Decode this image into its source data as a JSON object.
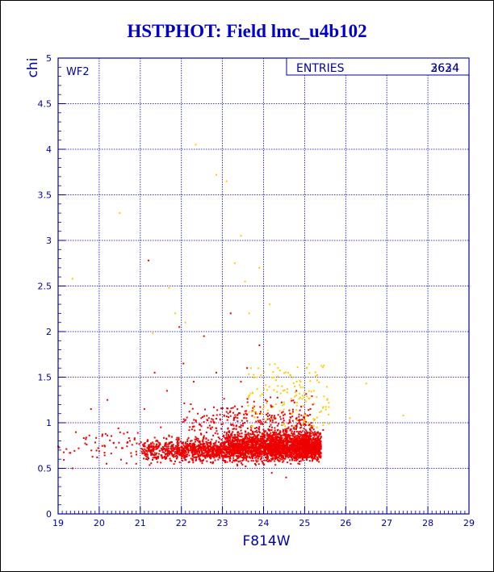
{
  "chart_data": {
    "type": "scatter",
    "title": "HSTPHOT: Field lmc_u4b102",
    "xlabel": "F814W",
    "ylabel": "chi",
    "xlim": [
      19,
      29
    ],
    "ylim": [
      0,
      5
    ],
    "grid": true,
    "panel_label": "WF2",
    "stats_box": {
      "label": "ENTRIES",
      "values": [
        "2624",
        "3634"
      ]
    },
    "xticks": [
      "19",
      "20",
      "21",
      "22",
      "23",
      "24",
      "25",
      "26",
      "27",
      "28",
      "29"
    ],
    "yticks": [
      "0",
      "0.5",
      "1",
      "1.5",
      "2",
      "2.5",
      "3",
      "3.5",
      "4",
      "4.5",
      "5"
    ],
    "colors": {
      "title": "#0000cc",
      "axes": "#0000aa",
      "grid": "#0000cc",
      "series_red": "#ee0000",
      "series_yellow": "#ffcc00"
    },
    "series": [
      {
        "color_key": "series_red",
        "values": [
          [
            19.35,
            0.5
          ],
          [
            19.5,
            0.72
          ],
          [
            19.8,
            1.15
          ],
          [
            19.95,
            0.62
          ],
          [
            20.2,
            1.25
          ],
          [
            20.35,
            0.78
          ],
          [
            20.6,
            0.88
          ],
          [
            20.9,
            0.55
          ],
          [
            21.1,
            1.15
          ],
          [
            21.2,
            2.78
          ],
          [
            21.35,
            1.55
          ],
          [
            21.5,
            0.95
          ],
          [
            21.65,
            1.35
          ],
          [
            21.95,
            2.05
          ],
          [
            22.05,
            1.65
          ],
          [
            22.3,
            1.45
          ],
          [
            22.55,
            1.95
          ],
          [
            22.75,
            0.95
          ],
          [
            22.85,
            1.55
          ],
          [
            23.2,
            2.2
          ],
          [
            23.45,
            1.45
          ],
          [
            23.9,
            1.85
          ],
          [
            24.05,
            1.25
          ],
          [
            24.2,
            0.45
          ],
          [
            24.55,
            0.4
          ],
          [
            25.2,
            1.2
          ],
          [
            25.45,
            0.92
          ],
          [
            24.8,
            1.35
          ],
          [
            23.6,
            1.6
          ],
          [
            22.4,
            1.1
          ]
        ]
      },
      {
        "color_key": "series_yellow",
        "values": [
          [
            19.35,
            2.58
          ],
          [
            20.5,
            3.3
          ],
          [
            21.3,
            1.98
          ],
          [
            21.7,
            2.48
          ],
          [
            21.85,
            2.2
          ],
          [
            22.1,
            2.1
          ],
          [
            22.35,
            4.05
          ],
          [
            22.85,
            3.72
          ],
          [
            23.1,
            3.65
          ],
          [
            23.3,
            2.75
          ],
          [
            23.45,
            3.05
          ],
          [
            23.55,
            2.55
          ],
          [
            23.65,
            2.2
          ],
          [
            23.9,
            2.7
          ],
          [
            24.15,
            2.3
          ],
          [
            24.35,
            1.6
          ],
          [
            24.45,
            1.4
          ],
          [
            24.5,
            1.2
          ],
          [
            24.6,
            1.55
          ],
          [
            24.7,
            1.1
          ],
          [
            24.8,
            1.3
          ],
          [
            24.9,
            1.45
          ],
          [
            25.05,
            1.6
          ],
          [
            25.1,
            1.0
          ],
          [
            25.3,
            0.95
          ],
          [
            25.55,
            1.25
          ],
          [
            26.1,
            1.05
          ],
          [
            26.5,
            1.43
          ],
          [
            27.4,
            1.08
          ],
          [
            24.25,
            1.5
          ]
        ]
      }
    ]
  }
}
